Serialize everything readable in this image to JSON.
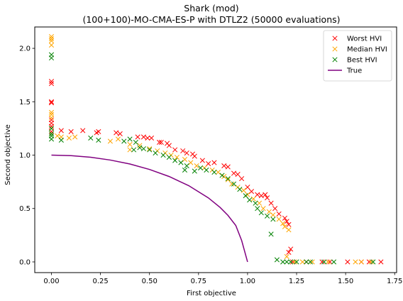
{
  "chart_data": {
    "type": "scatter",
    "title": "Shark (mod)",
    "subtitle": "(100+100)-MO-CMA-ES-P with DTLZ2 (50000 evaluations)",
    "xlabel": "First objective",
    "ylabel": "Second objective",
    "xlim": [
      -0.085,
      1.76
    ],
    "ylim": [
      -0.1,
      2.2
    ],
    "xticks": [
      0.0,
      0.25,
      0.5,
      0.75,
      1.0,
      1.25,
      1.5,
      1.75
    ],
    "xtick_labels": [
      "0.00",
      "0.25",
      "0.50",
      "0.75",
      "1.00",
      "1.25",
      "1.50",
      "1.75"
    ],
    "yticks": [
      0.0,
      0.5,
      1.0,
      1.5,
      2.0
    ],
    "ytick_labels": [
      "0.0",
      "0.5",
      "1.0",
      "1.5",
      "2.0"
    ],
    "grid": false,
    "legend_position": "top-right",
    "series": [
      {
        "name": "Worst HVI",
        "color": "#ff0000",
        "marker": "x",
        "points": [
          [
            0.0,
            1.69
          ],
          [
            0.0,
            1.67
          ],
          [
            0.0,
            1.5
          ],
          [
            0.0,
            1.49
          ],
          [
            0.0,
            1.33
          ],
          [
            0.0,
            1.3
          ],
          [
            0.0,
            1.27
          ],
          [
            0.0,
            1.22
          ],
          [
            0.05,
            1.23
          ],
          [
            0.1,
            1.22
          ],
          [
            0.16,
            1.23
          ],
          [
            0.23,
            1.21
          ],
          [
            0.24,
            1.22
          ],
          [
            0.33,
            1.21
          ],
          [
            0.35,
            1.2
          ],
          [
            0.44,
            1.17
          ],
          [
            0.47,
            1.17
          ],
          [
            0.49,
            1.16
          ],
          [
            0.51,
            1.16
          ],
          [
            0.55,
            1.12
          ],
          [
            0.56,
            1.12
          ],
          [
            0.59,
            1.11
          ],
          [
            0.6,
            1.09
          ],
          [
            0.63,
            1.05
          ],
          [
            0.67,
            1.04
          ],
          [
            0.69,
            1.02
          ],
          [
            0.72,
            1.01
          ],
          [
            0.73,
            0.99
          ],
          [
            0.77,
            0.95
          ],
          [
            0.8,
            0.92
          ],
          [
            0.83,
            0.93
          ],
          [
            0.88,
            0.9
          ],
          [
            0.9,
            0.89
          ],
          [
            0.93,
            0.83
          ],
          [
            0.95,
            0.82
          ],
          [
            0.97,
            0.78
          ],
          [
            1.0,
            0.7
          ],
          [
            1.02,
            0.66
          ],
          [
            1.05,
            0.63
          ],
          [
            1.07,
            0.62
          ],
          [
            1.09,
            0.63
          ],
          [
            1.1,
            0.6
          ],
          [
            1.12,
            0.55
          ],
          [
            1.14,
            0.5
          ],
          [
            1.16,
            0.45
          ],
          [
            1.19,
            0.41
          ],
          [
            1.2,
            0.38
          ],
          [
            1.21,
            0.35
          ],
          [
            1.22,
            0.12
          ],
          [
            1.21,
            0.09
          ],
          [
            1.23,
            0.0
          ],
          [
            1.3,
            0.0
          ],
          [
            1.38,
            0.0
          ],
          [
            1.42,
            0.0
          ],
          [
            1.51,
            0.0
          ],
          [
            1.58,
            0.0
          ],
          [
            1.62,
            0.0
          ],
          [
            1.68,
            0.0
          ]
        ]
      },
      {
        "name": "Median HVI",
        "color": "#ffa500",
        "marker": "x",
        "points": [
          [
            0.0,
            2.11
          ],
          [
            0.0,
            2.09
          ],
          [
            0.0,
            2.07
          ],
          [
            0.0,
            2.03
          ],
          [
            0.0,
            1.4
          ],
          [
            0.0,
            1.38
          ],
          [
            0.0,
            1.35
          ],
          [
            0.0,
            1.25
          ],
          [
            0.0,
            1.2
          ],
          [
            0.03,
            1.18
          ],
          [
            0.05,
            1.17
          ],
          [
            0.09,
            1.16
          ],
          [
            0.12,
            1.17
          ],
          [
            0.3,
            1.13
          ],
          [
            0.34,
            1.15
          ],
          [
            0.4,
            1.1
          ],
          [
            0.4,
            1.05
          ],
          [
            0.45,
            1.09
          ],
          [
            0.5,
            1.06
          ],
          [
            0.54,
            1.04
          ],
          [
            0.58,
            1.02
          ],
          [
            0.61,
            1.0
          ],
          [
            0.64,
            0.98
          ],
          [
            0.68,
            0.96
          ],
          [
            0.71,
            0.93
          ],
          [
            0.74,
            0.9
          ],
          [
            0.78,
            0.88
          ],
          [
            0.82,
            0.86
          ],
          [
            0.85,
            0.84
          ],
          [
            0.88,
            0.8
          ],
          [
            0.9,
            0.77
          ],
          [
            0.92,
            0.73
          ],
          [
            0.95,
            0.7
          ],
          [
            0.98,
            0.67
          ],
          [
            1.0,
            0.63
          ],
          [
            1.03,
            0.59
          ],
          [
            1.06,
            0.55
          ],
          [
            1.08,
            0.5
          ],
          [
            1.11,
            0.47
          ],
          [
            1.13,
            0.44
          ],
          [
            1.16,
            0.4
          ],
          [
            1.18,
            0.36
          ],
          [
            1.19,
            0.33
          ],
          [
            1.21,
            0.3
          ],
          [
            1.2,
            0.05
          ],
          [
            1.24,
            0.0
          ],
          [
            1.28,
            0.0
          ],
          [
            1.33,
            0.0
          ],
          [
            1.41,
            0.0
          ],
          [
            1.55,
            0.0
          ],
          [
            1.58,
            0.0
          ],
          [
            1.63,
            0.0
          ]
        ]
      },
      {
        "name": "Best HVI",
        "color": "#008000",
        "marker": "x",
        "points": [
          [
            0.0,
            1.94
          ],
          [
            0.0,
            1.91
          ],
          [
            0.0,
            1.25
          ],
          [
            0.0,
            1.2
          ],
          [
            0.0,
            1.18
          ],
          [
            0.0,
            1.15
          ],
          [
            0.05,
            1.14
          ],
          [
            0.2,
            1.16
          ],
          [
            0.24,
            1.14
          ],
          [
            0.37,
            1.13
          ],
          [
            0.4,
            1.15
          ],
          [
            0.43,
            1.12
          ],
          [
            0.42,
            1.05
          ],
          [
            0.45,
            1.07
          ],
          [
            0.47,
            1.06
          ],
          [
            0.5,
            1.05
          ],
          [
            0.53,
            1.02
          ],
          [
            0.57,
            1.0
          ],
          [
            0.6,
            0.98
          ],
          [
            0.63,
            0.95
          ],
          [
            0.66,
            0.93
          ],
          [
            0.69,
            0.9
          ],
          [
            0.68,
            0.86
          ],
          [
            0.73,
            0.85
          ],
          [
            0.76,
            0.88
          ],
          [
            0.79,
            0.86
          ],
          [
            0.83,
            0.84
          ],
          [
            0.87,
            0.81
          ],
          [
            0.9,
            0.78
          ],
          [
            0.93,
            0.73
          ],
          [
            0.96,
            0.68
          ],
          [
            0.99,
            0.62
          ],
          [
            1.01,
            0.58
          ],
          [
            1.04,
            0.55
          ],
          [
            1.05,
            0.5
          ],
          [
            1.07,
            0.46
          ],
          [
            1.1,
            0.43
          ],
          [
            1.13,
            0.4
          ],
          [
            1.12,
            0.26
          ],
          [
            1.15,
            0.02
          ],
          [
            1.18,
            0.0
          ],
          [
            1.2,
            0.0
          ],
          [
            1.22,
            0.0
          ],
          [
            1.25,
            0.0
          ],
          [
            1.3,
            0.0
          ],
          [
            1.32,
            0.0
          ],
          [
            1.39,
            0.0
          ],
          [
            1.44,
            0.0
          ],
          [
            1.64,
            0.0
          ]
        ]
      },
      {
        "name": "True",
        "color": "#800080",
        "marker": "line",
        "points": [
          [
            0.0,
            1.0
          ],
          [
            0.1,
            0.995
          ],
          [
            0.2,
            0.98
          ],
          [
            0.3,
            0.954
          ],
          [
            0.4,
            0.917
          ],
          [
            0.5,
            0.866
          ],
          [
            0.6,
            0.8
          ],
          [
            0.7,
            0.714
          ],
          [
            0.8,
            0.6
          ],
          [
            0.86,
            0.51
          ],
          [
            0.9,
            0.436
          ],
          [
            0.94,
            0.341
          ],
          [
            0.97,
            0.2
          ],
          [
            1.0,
            0.0
          ]
        ]
      }
    ]
  }
}
